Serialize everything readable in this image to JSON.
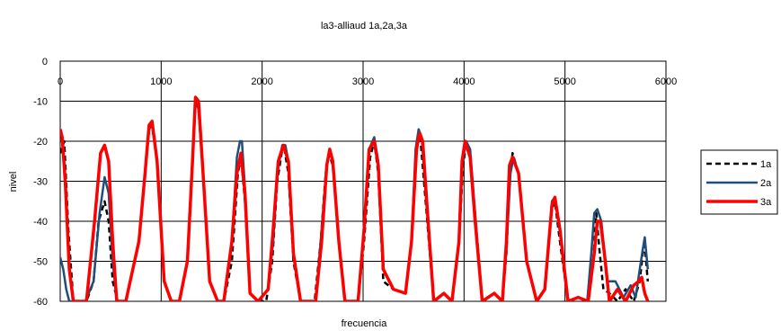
{
  "chart_data": {
    "type": "line",
    "title": "la3-alliaud 1a,2a,3a",
    "xlabel": "frecuencia",
    "ylabel": "nivel",
    "xlim": [
      0,
      6000
    ],
    "ylim": [
      -60,
      0
    ],
    "xticks": [
      0,
      1000,
      2000,
      3000,
      4000,
      5000,
      6000
    ],
    "yticks": [
      0,
      -10,
      -20,
      -30,
      -40,
      -50,
      -60
    ],
    "xtick_labels": [
      "0",
      "1000",
      "2000",
      "3000",
      "4000",
      "5000",
      "6000"
    ],
    "ytick_labels": [
      "0",
      "-10",
      "-20",
      "-30",
      "-40",
      "-50",
      "-60"
    ],
    "grid": true,
    "legend_position": "right",
    "series": [
      {
        "name": "1a",
        "color": "#000000",
        "style": "dashed",
        "x": [
          0,
          40,
          80,
          130,
          260,
          330,
          380,
          440,
          480,
          520,
          570,
          650,
          780,
          840,
          880,
          910,
          960,
          1030,
          1100,
          1180,
          1260,
          1310,
          1340,
          1370,
          1420,
          1480,
          1560,
          1620,
          1700,
          1760,
          1790,
          1830,
          1880,
          1960,
          2040,
          2100,
          2150,
          2200,
          2220,
          2260,
          2310,
          2380,
          2450,
          2520,
          2580,
          2630,
          2660,
          2700,
          2760,
          2820,
          2950,
          3010,
          3070,
          3110,
          3150,
          3200,
          3300,
          3420,
          3480,
          3530,
          3550,
          3570,
          3620,
          3700,
          3800,
          3880,
          3950,
          3990,
          4020,
          4060,
          4110,
          4180,
          4300,
          4380,
          4420,
          4450,
          4480,
          4540,
          4620,
          4720,
          4800,
          4840,
          4870,
          4900,
          4950,
          5030,
          5130,
          5230,
          5280,
          5310,
          5340,
          5380,
          5440,
          5520,
          5600,
          5680,
          5740,
          5770,
          5790,
          5820
        ],
        "y": [
          -23,
          -20,
          -42,
          -60,
          -60,
          -55,
          -40,
          -35,
          -40,
          -55,
          -60,
          -60,
          -45,
          -28,
          -17,
          -16,
          -25,
          -55,
          -60,
          -60,
          -50,
          -25,
          -10,
          -12,
          -30,
          -55,
          -60,
          -60,
          -50,
          -28,
          -24,
          -35,
          -58,
          -60,
          -60,
          -50,
          -30,
          -22,
          -22,
          -28,
          -50,
          -60,
          -60,
          -60,
          -45,
          -28,
          -23,
          -26,
          -45,
          -60,
          -60,
          -45,
          -24,
          -20,
          -28,
          -55,
          -57,
          -58,
          -45,
          -22,
          -18,
          -20,
          -35,
          -60,
          -58,
          -60,
          -45,
          -26,
          -21,
          -23,
          -40,
          -60,
          -58,
          -60,
          -48,
          -30,
          -23,
          -28,
          -50,
          -60,
          -57,
          -45,
          -37,
          -35,
          -45,
          -60,
          -59,
          -60,
          -50,
          -38,
          -47,
          -57,
          -58,
          -60,
          -57,
          -60,
          -55,
          -48,
          -46,
          -55
        ]
      },
      {
        "name": "2a",
        "color": "#1f4e79",
        "style": "solid",
        "x": [
          0,
          30,
          60,
          90,
          130,
          250,
          330,
          390,
          440,
          480,
          520,
          560,
          650,
          780,
          840,
          880,
          910,
          960,
          1030,
          1100,
          1180,
          1260,
          1310,
          1340,
          1370,
          1420,
          1480,
          1560,
          1620,
          1700,
          1750,
          1780,
          1800,
          1830,
          1880,
          1960,
          2060,
          2110,
          2150,
          2200,
          2230,
          2260,
          2310,
          2380,
          2450,
          2530,
          2580,
          2640,
          2670,
          2700,
          2760,
          2820,
          2950,
          3010,
          3060,
          3110,
          3150,
          3200,
          3300,
          3420,
          3480,
          3520,
          3550,
          3580,
          3620,
          3700,
          3800,
          3880,
          3950,
          3980,
          4020,
          4060,
          4110,
          4180,
          4300,
          4380,
          4420,
          4460,
          4490,
          4540,
          4620,
          4720,
          4800,
          4840,
          4870,
          4900,
          4950,
          5030,
          5130,
          5220,
          5260,
          5290,
          5320,
          5360,
          5420,
          5500,
          5580,
          5650,
          5700,
          5740,
          5770,
          5790,
          5820
        ],
        "y": [
          -49,
          -52,
          -57,
          -60,
          -60,
          -60,
          -55,
          -38,
          -29,
          -33,
          -50,
          -60,
          -60,
          -45,
          -28,
          -17,
          -16,
          -25,
          -55,
          -60,
          -60,
          -50,
          -25,
          -10,
          -12,
          -30,
          -55,
          -60,
          -60,
          -45,
          -24,
          -20,
          -20,
          -32,
          -58,
          -60,
          -57,
          -45,
          -28,
          -21,
          -21,
          -25,
          -48,
          -60,
          -60,
          -60,
          -45,
          -26,
          -23,
          -25,
          -45,
          -60,
          -60,
          -42,
          -22,
          -19,
          -25,
          -52,
          -57,
          -58,
          -45,
          -22,
          -17,
          -19,
          -33,
          -60,
          -58,
          -60,
          -45,
          -26,
          -20,
          -22,
          -38,
          -60,
          -58,
          -60,
          -47,
          -28,
          -24,
          -28,
          -50,
          -60,
          -57,
          -45,
          -35,
          -34,
          -42,
          -60,
          -59,
          -60,
          -48,
          -38,
          -37,
          -40,
          -55,
          -55,
          -59,
          -56,
          -59,
          -52,
          -47,
          -44,
          -52
        ]
      },
      {
        "name": "3a",
        "color": "#ff0000",
        "style": "solid",
        "x": [
          0,
          20,
          50,
          90,
          130,
          260,
          340,
          400,
          440,
          480,
          520,
          560,
          650,
          780,
          840,
          880,
          910,
          960,
          1030,
          1100,
          1180,
          1260,
          1310,
          1340,
          1370,
          1420,
          1480,
          1560,
          1620,
          1700,
          1750,
          1790,
          1830,
          1880,
          1960,
          2060,
          2110,
          2160,
          2210,
          2260,
          2310,
          2380,
          2450,
          2530,
          2590,
          2640,
          2670,
          2700,
          2760,
          2820,
          2950,
          3010,
          3060,
          3110,
          3150,
          3200,
          3300,
          3420,
          3480,
          3530,
          3560,
          3590,
          3630,
          3700,
          3800,
          3880,
          3950,
          3980,
          4010,
          4060,
          4110,
          4180,
          4300,
          4380,
          4420,
          4450,
          4480,
          4540,
          4620,
          4720,
          4800,
          4840,
          4870,
          4900,
          4950,
          5030,
          5130,
          5230,
          5290,
          5320,
          5350,
          5390,
          5440,
          5520,
          5600,
          5680,
          5730,
          5760,
          5790,
          5820
        ],
        "y": [
          -17,
          -19,
          -30,
          -52,
          -60,
          -60,
          -40,
          -23,
          -21,
          -25,
          -45,
          -60,
          -60,
          -45,
          -28,
          -16,
          -15,
          -25,
          -55,
          -60,
          -60,
          -50,
          -25,
          -9,
          -10,
          -30,
          -55,
          -60,
          -60,
          -45,
          -28,
          -23,
          -33,
          -58,
          -60,
          -57,
          -42,
          -25,
          -21,
          -25,
          -48,
          -60,
          -60,
          -60,
          -45,
          -26,
          -22,
          -25,
          -45,
          -60,
          -60,
          -42,
          -22,
          -20,
          -26,
          -52,
          -57,
          -58,
          -45,
          -22,
          -18,
          -20,
          -35,
          -60,
          -58,
          -60,
          -45,
          -25,
          -20,
          -24,
          -40,
          -60,
          -58,
          -60,
          -45,
          -26,
          -24,
          -28,
          -50,
          -60,
          -57,
          -45,
          -36,
          -34,
          -42,
          -60,
          -59,
          -60,
          -48,
          -40,
          -40,
          -48,
          -60,
          -57,
          -60,
          -56,
          -55,
          -54,
          -58,
          -60
        ]
      }
    ]
  }
}
